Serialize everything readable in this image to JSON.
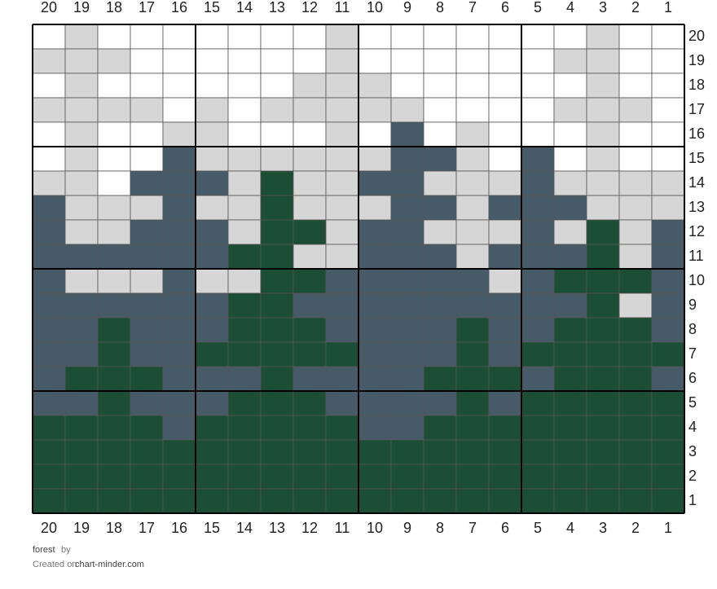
{
  "title": "forest",
  "by": "by",
  "created_on": "Created on",
  "site": "chart-minder.com",
  "column_labels": [
    20,
    19,
    18,
    17,
    16,
    15,
    14,
    13,
    12,
    11,
    10,
    9,
    8,
    7,
    6,
    5,
    4,
    3,
    2,
    1
  ],
  "row_labels": [
    20,
    19,
    18,
    17,
    16,
    15,
    14,
    13,
    12,
    11,
    10,
    9,
    8,
    7,
    6,
    5,
    4,
    3,
    2,
    1
  ],
  "palette": {
    "W": "#ffffff",
    "L": "#d6d6d6",
    "D": "#475a67",
    "G": "#1c4d35"
  },
  "grid": {
    "rows": [
      [
        "W",
        "L",
        "W",
        "W",
        "W",
        "W",
        "W",
        "W",
        "W",
        "L",
        "W",
        "W",
        "W",
        "W",
        "W",
        "W",
        "W",
        "L",
        "W",
        "W"
      ],
      [
        "L",
        "L",
        "L",
        "W",
        "W",
        "W",
        "W",
        "W",
        "W",
        "L",
        "W",
        "W",
        "W",
        "W",
        "W",
        "W",
        "L",
        "L",
        "W",
        "W"
      ],
      [
        "W",
        "L",
        "W",
        "W",
        "W",
        "W",
        "W",
        "W",
        "L",
        "L",
        "L",
        "W",
        "W",
        "W",
        "W",
        "W",
        "W",
        "L",
        "W",
        "W"
      ],
      [
        "L",
        "L",
        "L",
        "L",
        "W",
        "L",
        "W",
        "L",
        "L",
        "L",
        "L",
        "L",
        "W",
        "W",
        "W",
        "W",
        "L",
        "L",
        "L",
        "W"
      ],
      [
        "W",
        "L",
        "W",
        "W",
        "L",
        "L",
        "W",
        "W",
        "W",
        "L",
        "W",
        "D",
        "W",
        "L",
        "W",
        "W",
        "W",
        "L",
        "W",
        "W"
      ],
      [
        "W",
        "L",
        "W",
        "W",
        "D",
        "L",
        "L",
        "L",
        "L",
        "L",
        "L",
        "D",
        "D",
        "L",
        "W",
        "D",
        "W",
        "L",
        "W",
        "W"
      ],
      [
        "L",
        "L",
        "W",
        "D",
        "D",
        "D",
        "L",
        "G",
        "L",
        "L",
        "D",
        "D",
        "L",
        "L",
        "L",
        "D",
        "L",
        "L",
        "L",
        "L"
      ],
      [
        "D",
        "L",
        "L",
        "L",
        "D",
        "L",
        "L",
        "G",
        "L",
        "L",
        "L",
        "D",
        "D",
        "L",
        "D",
        "D",
        "D",
        "L",
        "L",
        "L"
      ],
      [
        "D",
        "L",
        "L",
        "D",
        "D",
        "D",
        "L",
        "G",
        "G",
        "L",
        "D",
        "D",
        "L",
        "L",
        "L",
        "D",
        "L",
        "G",
        "L",
        "D"
      ],
      [
        "D",
        "D",
        "D",
        "D",
        "D",
        "D",
        "G",
        "G",
        "L",
        "L",
        "D",
        "D",
        "D",
        "L",
        "D",
        "D",
        "D",
        "G",
        "L",
        "D"
      ],
      [
        "D",
        "L",
        "L",
        "L",
        "D",
        "L",
        "L",
        "G",
        "G",
        "D",
        "D",
        "D",
        "D",
        "D",
        "L",
        "D",
        "G",
        "G",
        "G",
        "D"
      ],
      [
        "D",
        "D",
        "D",
        "D",
        "D",
        "D",
        "G",
        "G",
        "D",
        "D",
        "D",
        "D",
        "D",
        "D",
        "D",
        "D",
        "D",
        "G",
        "L",
        "D"
      ],
      [
        "D",
        "D",
        "G",
        "D",
        "D",
        "D",
        "G",
        "G",
        "G",
        "D",
        "D",
        "D",
        "D",
        "G",
        "D",
        "D",
        "G",
        "G",
        "G",
        "D"
      ],
      [
        "D",
        "D",
        "G",
        "D",
        "D",
        "G",
        "G",
        "G",
        "G",
        "G",
        "D",
        "D",
        "D",
        "G",
        "D",
        "G",
        "G",
        "G",
        "G",
        "G"
      ],
      [
        "D",
        "G",
        "G",
        "G",
        "D",
        "D",
        "D",
        "G",
        "D",
        "D",
        "D",
        "D",
        "G",
        "G",
        "G",
        "D",
        "G",
        "G",
        "G",
        "D"
      ],
      [
        "D",
        "D",
        "G",
        "D",
        "D",
        "D",
        "G",
        "G",
        "G",
        "D",
        "D",
        "D",
        "D",
        "G",
        "D",
        "G",
        "G",
        "G",
        "G",
        "G"
      ],
      [
        "G",
        "G",
        "G",
        "G",
        "D",
        "G",
        "G",
        "G",
        "G",
        "G",
        "D",
        "D",
        "G",
        "G",
        "G",
        "G",
        "G",
        "G",
        "G",
        "G"
      ],
      [
        "G",
        "G",
        "G",
        "G",
        "G",
        "G",
        "G",
        "G",
        "G",
        "G",
        "G",
        "G",
        "G",
        "G",
        "G",
        "G",
        "G",
        "G",
        "G",
        "G"
      ],
      [
        "G",
        "G",
        "G",
        "G",
        "G",
        "G",
        "G",
        "G",
        "G",
        "G",
        "G",
        "G",
        "G",
        "G",
        "G",
        "G",
        "G",
        "G",
        "G",
        "G"
      ],
      [
        "G",
        "G",
        "G",
        "G",
        "G",
        "G",
        "G",
        "G",
        "G",
        "G",
        "G",
        "G",
        "G",
        "G",
        "G",
        "G",
        "G",
        "G",
        "G",
        "G"
      ]
    ]
  }
}
